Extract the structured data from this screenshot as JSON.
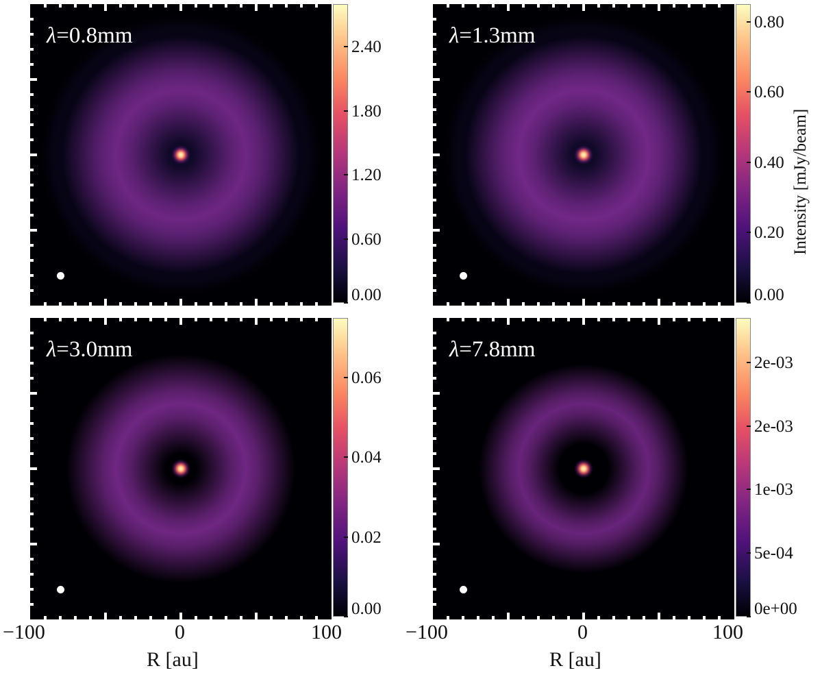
{
  "chart_data": {
    "type": "heatmap",
    "colormap": "magma",
    "xlabel": "R [au]",
    "xlim": [
      -100,
      100
    ],
    "ylim": [
      -100,
      100
    ],
    "x_tick_labels": [
      "−100",
      "0",
      "100"
    ],
    "colorbar_title": "Intensity [mJy/beam]",
    "colors": {
      "background": "#000004",
      "ring": "#7a2a8f",
      "peak": "#fcfdbf",
      "beam": "#ffffff"
    },
    "panels": [
      {
        "lambda_symbol": "λ",
        "lambda_value": "=0.8mm",
        "colorbar_ticks": [
          "0.00",
          "0.60",
          "1.20",
          "1.80",
          "2.40"
        ],
        "colorbar_tick_values": [
          0.0,
          0.6,
          1.2,
          1.8,
          2.4
        ],
        "colorbar_max": 2.8,
        "center_peak_fraction": 1.0,
        "ring_fraction": 0.34,
        "ring_radius_au": 43,
        "ring_width_au": 16,
        "halo_radius_au": 95,
        "beam_position_au": [
          -80,
          -80
        ]
      },
      {
        "lambda_symbol": "λ",
        "lambda_value": "=1.3mm",
        "colorbar_ticks": [
          "0.00",
          "0.20",
          "0.40",
          "0.60",
          "0.80"
        ],
        "colorbar_tick_values": [
          0.0,
          0.2,
          0.4,
          0.6,
          0.8
        ],
        "colorbar_max": 0.85,
        "center_peak_fraction": 1.0,
        "ring_fraction": 0.37,
        "ring_radius_au": 43,
        "ring_width_au": 16,
        "halo_radius_au": 95,
        "beam_position_au": [
          -80,
          -80
        ]
      },
      {
        "lambda_symbol": "λ",
        "lambda_value": "=3.0mm",
        "colorbar_ticks": [
          "0.00",
          "0.02",
          "0.04",
          "0.06"
        ],
        "colorbar_tick_values": [
          0.0,
          0.02,
          0.04,
          0.06
        ],
        "colorbar_max": 0.075,
        "center_peak_fraction": 1.0,
        "ring_fraction": 0.36,
        "ring_radius_au": 43,
        "ring_width_au": 15,
        "halo_radius_au": 0,
        "beam_position_au": [
          -80,
          -80
        ]
      },
      {
        "lambda_symbol": "λ",
        "lambda_value": "=7.8mm",
        "colorbar_ticks": [
          "0e+00",
          "5e-04",
          "1e-03",
          "2e-03",
          "2e-03"
        ],
        "colorbar_tick_values": [
          0.0,
          0.0005,
          0.001,
          0.0015,
          0.002
        ],
        "colorbar_max": 0.00235,
        "center_peak_fraction": 1.0,
        "ring_fraction": 0.3,
        "ring_radius_au": 43,
        "ring_width_au": 12,
        "halo_radius_au": 0,
        "beam_position_au": [
          -80,
          -80
        ]
      }
    ]
  }
}
